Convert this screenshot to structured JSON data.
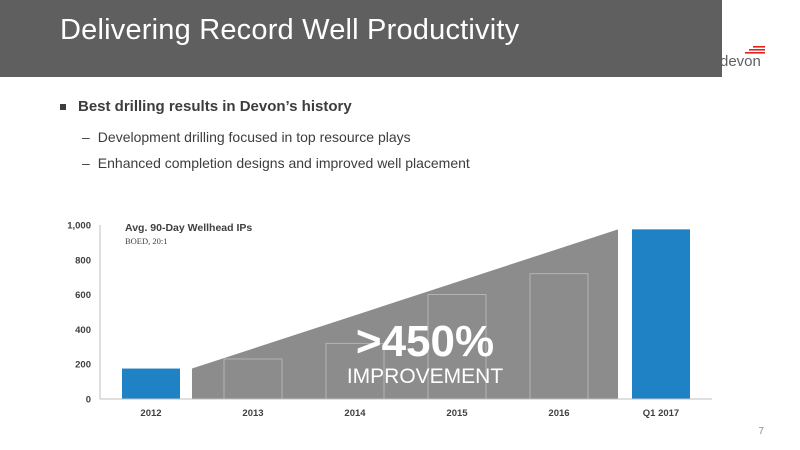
{
  "slide": {
    "title": "Delivering Record Well Productivity",
    "logo_text": "devon",
    "bullet_main": "Best drilling results in Devon’s history",
    "sub_bullets": [
      "Development drilling focused in top resource plays",
      "Enhanced completion designs and improved well placement"
    ],
    "dash": "–",
    "page_number": "7"
  },
  "colors": {
    "title_bar": "#5f5f5f",
    "bar_highlight": "#1f82c4",
    "triangle": "#8c8c8c",
    "logo_accent": "#e2231a"
  },
  "chart_data": {
    "type": "bar",
    "title": "Avg. 90-Day Wellhead IPs",
    "subtitle": "BOED, 20:1",
    "categories": [
      "2012",
      "2013",
      "2014",
      "2015",
      "2016",
      "Q1 2017"
    ],
    "values": [
      175,
      230,
      320,
      600,
      720,
      975
    ],
    "highlighted": [
      "2012",
      "Q1 2017"
    ],
    "ylim": [
      0,
      1000
    ],
    "yticks": [
      "0",
      "200",
      "400",
      "600",
      "800",
      "1,000"
    ],
    "grid": false,
    "annotation": {
      "big": ">450%",
      "small": "IMPROVEMENT"
    }
  }
}
